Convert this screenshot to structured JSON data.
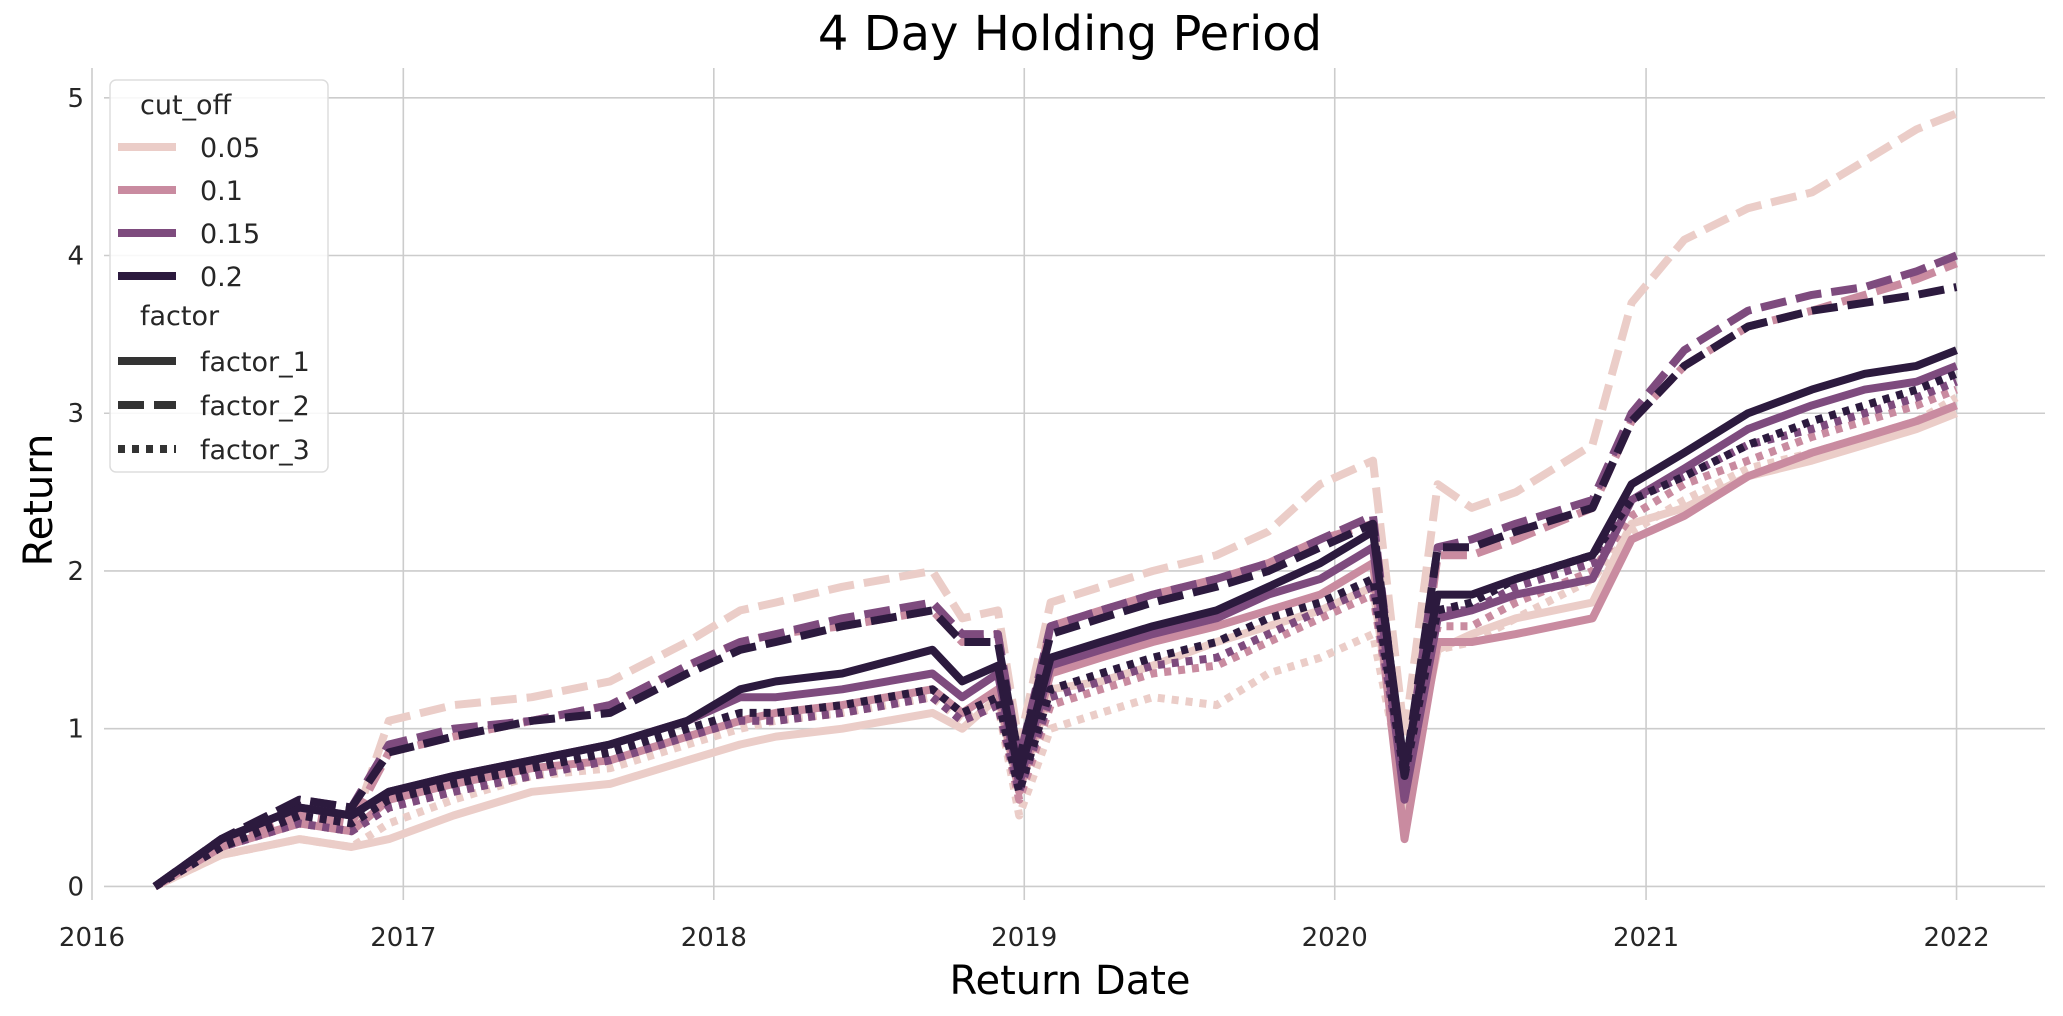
{
  "chart_data": {
    "type": "line",
    "title": "4 Day Holding Period",
    "xlabel": "Return Date",
    "ylabel": "Return",
    "xlim": [
      "2016-01-01",
      "2022-04-15"
    ],
    "ylim": [
      -0.2,
      5.1
    ],
    "x_ticks": [
      "2016",
      "2017",
      "2018",
      "2019",
      "2020",
      "2021",
      "2022"
    ],
    "y_ticks": [
      "0",
      "1",
      "2",
      "3",
      "4",
      "5"
    ],
    "grid": true,
    "legend": {
      "position": "top-left",
      "hue_title": "cut_off",
      "style_title": "factor",
      "hue_entries": [
        {
          "label": "0.05",
          "color": "#ebcdc8"
        },
        {
          "label": "0.1",
          "color": "#c98ba0"
        },
        {
          "label": "0.15",
          "color": "#7e4b7e"
        },
        {
          "label": "0.2",
          "color": "#2c1a3e"
        }
      ],
      "style_entries": [
        {
          "label": "factor_1",
          "dash": "solid"
        },
        {
          "label": "factor_2",
          "dash": "dashed"
        },
        {
          "label": "factor_3",
          "dash": "dotted"
        }
      ]
    },
    "x": [
      "2016-03-15",
      "2016-06-01",
      "2016-09-01",
      "2016-11-01",
      "2016-12-15",
      "2017-03-01",
      "2017-06-01",
      "2017-09-01",
      "2017-12-01",
      "2018-02-01",
      "2018-03-15",
      "2018-06-01",
      "2018-09-15",
      "2018-10-20",
      "2018-12-01",
      "2018-12-26",
      "2019-02-01",
      "2019-04-01",
      "2019-06-01",
      "2019-08-15",
      "2019-10-15",
      "2019-12-15",
      "2020-02-15",
      "2020-03-23",
      "2020-05-01",
      "2020-06-10",
      "2020-08-01",
      "2020-10-30",
      "2020-12-15",
      "2021-02-15",
      "2021-05-01",
      "2021-07-15",
      "2021-09-15",
      "2021-11-15",
      "2022-01-01"
    ],
    "series": [
      {
        "name": "0.05",
        "factor": "factor_1",
        "color": "#ebcdc8",
        "dash": "solid",
        "values": [
          0.0,
          0.2,
          0.3,
          0.25,
          0.3,
          0.45,
          0.6,
          0.65,
          0.8,
          0.9,
          0.95,
          1.0,
          1.1,
          1.0,
          1.2,
          0.6,
          1.25,
          1.3,
          1.4,
          1.55,
          1.65,
          1.75,
          1.9,
          0.5,
          1.5,
          1.6,
          1.7,
          1.8,
          2.3,
          2.4,
          2.6,
          2.7,
          2.8,
          2.9,
          3.0
        ]
      },
      {
        "name": "0.05",
        "factor": "factor_2",
        "color": "#ebcdc8",
        "dash": "dashed",
        "values": [
          0.0,
          0.25,
          0.4,
          0.35,
          1.05,
          1.15,
          1.2,
          1.3,
          1.55,
          1.75,
          1.8,
          1.9,
          2.0,
          1.7,
          1.75,
          0.9,
          1.8,
          1.9,
          2.0,
          2.1,
          2.25,
          2.55,
          2.7,
          0.95,
          2.55,
          2.4,
          2.5,
          2.8,
          3.7,
          4.1,
          4.3,
          4.4,
          4.6,
          4.8,
          4.9
        ]
      },
      {
        "name": "0.05",
        "factor": "factor_3",
        "color": "#ebcdc8",
        "dash": "dotted",
        "values": [
          0.0,
          0.2,
          0.3,
          0.25,
          0.4,
          0.55,
          0.7,
          0.75,
          0.9,
          1.0,
          1.05,
          1.1,
          1.2,
          1.05,
          1.15,
          0.45,
          1.0,
          1.1,
          1.2,
          1.15,
          1.35,
          1.45,
          1.6,
          0.6,
          1.5,
          1.55,
          1.7,
          1.95,
          2.25,
          2.45,
          2.65,
          2.75,
          2.85,
          2.95,
          3.1
        ]
      },
      {
        "name": "0.1",
        "factor": "factor_1",
        "color": "#c98ba0",
        "dash": "solid",
        "values": [
          0.0,
          0.25,
          0.4,
          0.35,
          0.55,
          0.65,
          0.75,
          0.8,
          0.95,
          1.05,
          1.1,
          1.15,
          1.25,
          1.1,
          1.25,
          0.6,
          1.35,
          1.45,
          1.55,
          1.65,
          1.75,
          1.85,
          2.05,
          0.3,
          1.55,
          1.55,
          1.6,
          1.7,
          2.2,
          2.35,
          2.6,
          2.75,
          2.85,
          2.95,
          3.05
        ]
      },
      {
        "name": "0.1",
        "factor": "factor_2",
        "color": "#c98ba0",
        "dash": "dashed",
        "values": [
          0.0,
          0.25,
          0.45,
          0.4,
          0.85,
          0.95,
          1.05,
          1.15,
          1.4,
          1.55,
          1.6,
          1.65,
          1.75,
          1.55,
          1.6,
          0.75,
          1.65,
          1.75,
          1.85,
          1.95,
          2.05,
          2.2,
          2.3,
          0.55,
          2.1,
          2.1,
          2.2,
          2.4,
          2.95,
          3.3,
          3.55,
          3.65,
          3.75,
          3.85,
          3.95
        ]
      },
      {
        "name": "0.1",
        "factor": "factor_3",
        "color": "#c98ba0",
        "dash": "dotted",
        "values": [
          0.0,
          0.25,
          0.4,
          0.35,
          0.5,
          0.6,
          0.7,
          0.8,
          0.95,
          1.05,
          1.05,
          1.1,
          1.2,
          1.05,
          1.15,
          0.55,
          1.15,
          1.25,
          1.35,
          1.4,
          1.55,
          1.7,
          1.85,
          0.6,
          1.65,
          1.65,
          1.8,
          2.0,
          2.35,
          2.55,
          2.7,
          2.85,
          2.95,
          3.05,
          3.15
        ]
      },
      {
        "name": "0.15",
        "factor": "factor_1",
        "color": "#7e4b7e",
        "dash": "solid",
        "values": [
          0.0,
          0.3,
          0.5,
          0.45,
          0.6,
          0.7,
          0.8,
          0.9,
          1.05,
          1.2,
          1.2,
          1.25,
          1.35,
          1.2,
          1.35,
          0.65,
          1.4,
          1.5,
          1.6,
          1.7,
          1.85,
          1.95,
          2.15,
          0.55,
          1.7,
          1.75,
          1.85,
          1.95,
          2.45,
          2.65,
          2.9,
          3.05,
          3.15,
          3.2,
          3.3
        ]
      },
      {
        "name": "0.15",
        "factor": "factor_2",
        "color": "#7e4b7e",
        "dash": "dashed",
        "values": [
          0.0,
          0.3,
          0.55,
          0.5,
          0.9,
          1.0,
          1.05,
          1.15,
          1.4,
          1.55,
          1.6,
          1.7,
          1.8,
          1.6,
          1.6,
          0.8,
          1.65,
          1.75,
          1.85,
          1.95,
          2.05,
          2.2,
          2.35,
          0.65,
          2.15,
          2.2,
          2.3,
          2.45,
          3.0,
          3.4,
          3.65,
          3.75,
          3.8,
          3.9,
          4.0
        ]
      },
      {
        "name": "0.15",
        "factor": "factor_3",
        "color": "#7e4b7e",
        "dash": "dotted",
        "values": [
          0.0,
          0.25,
          0.4,
          0.35,
          0.5,
          0.6,
          0.7,
          0.8,
          0.95,
          1.05,
          1.05,
          1.1,
          1.2,
          1.05,
          1.15,
          0.6,
          1.2,
          1.3,
          1.4,
          1.45,
          1.6,
          1.75,
          1.9,
          0.65,
          1.75,
          1.75,
          1.9,
          2.05,
          2.45,
          2.6,
          2.8,
          2.9,
          3.0,
          3.1,
          3.2
        ]
      },
      {
        "name": "0.2",
        "factor": "factor_1",
        "color": "#2c1a3e",
        "dash": "solid",
        "values": [
          0.0,
          0.3,
          0.5,
          0.45,
          0.6,
          0.7,
          0.8,
          0.9,
          1.05,
          1.25,
          1.3,
          1.35,
          1.5,
          1.3,
          1.4,
          0.7,
          1.45,
          1.55,
          1.65,
          1.75,
          1.9,
          2.05,
          2.25,
          0.75,
          1.85,
          1.85,
          1.95,
          2.1,
          2.55,
          2.75,
          3.0,
          3.15,
          3.25,
          3.3,
          3.4
        ]
      },
      {
        "name": "0.2",
        "factor": "factor_2",
        "color": "#2c1a3e",
        "dash": "dashed",
        "values": [
          0.0,
          0.3,
          0.55,
          0.5,
          0.85,
          0.95,
          1.05,
          1.1,
          1.35,
          1.5,
          1.55,
          1.65,
          1.75,
          1.55,
          1.55,
          0.8,
          1.6,
          1.7,
          1.8,
          1.9,
          2.0,
          2.15,
          2.3,
          0.7,
          2.15,
          2.15,
          2.25,
          2.4,
          2.95,
          3.3,
          3.55,
          3.65,
          3.7,
          3.75,
          3.8
        ]
      },
      {
        "name": "0.2",
        "factor": "factor_3",
        "color": "#2c1a3e",
        "dash": "dotted",
        "values": [
          0.0,
          0.25,
          0.45,
          0.4,
          0.55,
          0.65,
          0.75,
          0.85,
          1.0,
          1.1,
          1.1,
          1.15,
          1.25,
          1.1,
          1.2,
          0.6,
          1.25,
          1.35,
          1.45,
          1.55,
          1.7,
          1.8,
          1.95,
          0.7,
          1.75,
          1.8,
          1.95,
          2.1,
          2.45,
          2.6,
          2.8,
          2.95,
          3.05,
          3.15,
          3.25
        ]
      }
    ]
  }
}
